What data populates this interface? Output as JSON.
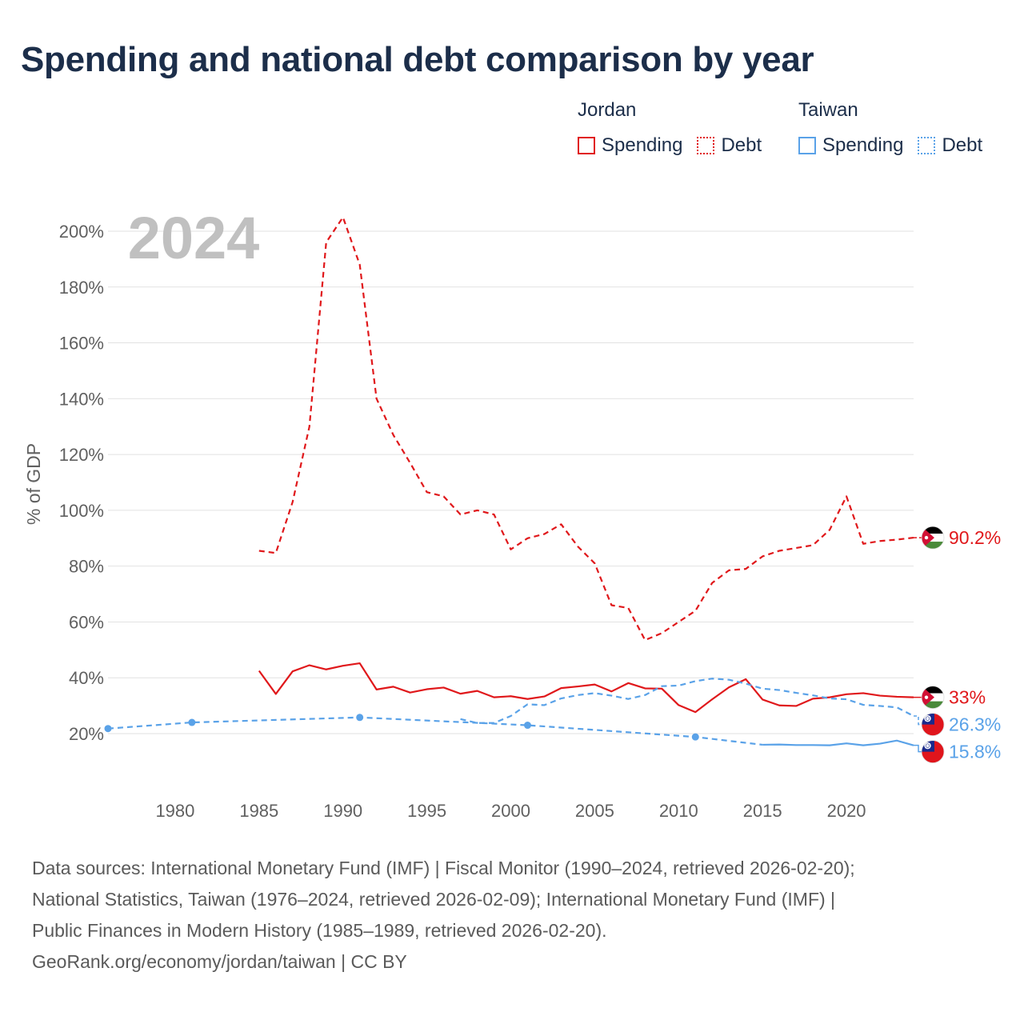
{
  "title": "Spending and national debt comparison by year",
  "legend": {
    "groups": [
      {
        "name": "Jordan",
        "color": "#e0181b",
        "items": [
          {
            "label": "Spending",
            "style": "solid"
          },
          {
            "label": "Debt",
            "style": "dotted"
          }
        ]
      },
      {
        "name": "Taiwan",
        "color": "#5aa2e8",
        "items": [
          {
            "label": "Spending",
            "style": "solid"
          },
          {
            "label": "Debt",
            "style": "dotted"
          }
        ]
      }
    ]
  },
  "year_label": "2024",
  "sources": [
    "Data sources: International Monetary Fund (IMF) | Fiscal Monitor (1990–2024, retrieved 2026-02-20);",
    "National Statistics, Taiwan (1976–2024, retrieved 2026-02-09); International Monetary Fund (IMF) |",
    "Public Finances in Modern History (1985–1989, retrieved 2026-02-20).",
    "GeoRank.org/economy/jordan/taiwan | CC BY"
  ],
  "chart_data": {
    "type": "line",
    "title": "Spending and national debt comparison by year",
    "xlabel": "",
    "ylabel": "% of GDP",
    "xlim": [
      1976,
      2024
    ],
    "ylim": [
      10,
      205
    ],
    "xticks": [
      1980,
      1985,
      1990,
      1995,
      2000,
      2005,
      2010,
      2015,
      2020
    ],
    "xtick_labels": [
      "1980",
      "1985",
      "1990",
      "1995",
      "2000",
      "2005",
      "2010",
      "2015",
      "2020"
    ],
    "yticks": [
      20,
      40,
      60,
      80,
      100,
      120,
      140,
      160,
      180,
      200
    ],
    "ytick_labels": [
      "20%",
      "40%",
      "60%",
      "80%",
      "100%",
      "120%",
      "140%",
      "160%",
      "180%",
      "200%"
    ],
    "grid": true,
    "series": [
      {
        "name": "Jordan Debt",
        "country": "Jordan",
        "color": "#e0181b",
        "style": "dashed",
        "end_label": "90.2%",
        "x": [
          1985,
          1986,
          1987,
          1988,
          1989,
          1990,
          1991,
          1992,
          1993,
          1994,
          1995,
          1996,
          1997,
          1998,
          1999,
          2000,
          2001,
          2002,
          2003,
          2004,
          2005,
          2006,
          2007,
          2008,
          2009,
          2010,
          2011,
          2012,
          2013,
          2014,
          2015,
          2016,
          2017,
          2018,
          2019,
          2020,
          2021,
          2022,
          2023,
          2024
        ],
        "y": [
          85.5,
          84.7,
          103,
          130,
          196,
          205,
          188,
          140,
          127,
          117,
          106.5,
          105,
          98.5,
          100,
          98.5,
          86,
          90,
          91.5,
          95,
          87,
          81,
          66,
          65,
          53.5,
          56,
          60,
          64,
          74,
          78.5,
          79,
          83.5,
          85.5,
          86.5,
          87.5,
          93,
          105,
          88,
          89,
          89.5,
          90.2
        ]
      },
      {
        "name": "Jordan Spending",
        "country": "Jordan",
        "color": "#e0181b",
        "style": "solid",
        "end_label": "33%",
        "x": [
          1985,
          1986,
          1987,
          1988,
          1989,
          1990,
          1991,
          1992,
          1993,
          1994,
          1995,
          1996,
          1997,
          1998,
          1999,
          2000,
          2001,
          2002,
          2003,
          2004,
          2005,
          2006,
          2007,
          2008,
          2009,
          2010,
          2011,
          2012,
          2013,
          2014,
          2015,
          2016,
          2017,
          2018,
          2019,
          2020,
          2021,
          2022,
          2023,
          2024
        ],
        "y": [
          42.5,
          34.2,
          42.3,
          44.5,
          43,
          44.3,
          45.2,
          35.8,
          36.8,
          34.7,
          35.9,
          36.5,
          34.3,
          35.3,
          33,
          33.4,
          32.4,
          33.3,
          36.3,
          36.9,
          37.6,
          35.1,
          38.1,
          36.2,
          36.1,
          30.2,
          27.7,
          32.3,
          36.6,
          39.5,
          32.2,
          30.1,
          29.9,
          32.5,
          33,
          34.1,
          34.5,
          33.6,
          33.2,
          33
        ]
      },
      {
        "name": "Taiwan Debt",
        "country": "Taiwan",
        "color": "#5aa2e8",
        "style": "dashed",
        "end_label": "26.3%",
        "x": [
          1997,
          1998,
          1999,
          2000,
          2001,
          2002,
          2003,
          2004,
          2005,
          2006,
          2007,
          2008,
          2009,
          2010,
          2011,
          2012,
          2013,
          2014,
          2015,
          2016,
          2017,
          2018,
          2019,
          2020,
          2021,
          2022,
          2023,
          2024
        ],
        "y": [
          25.2,
          23.8,
          23.8,
          26.3,
          30.5,
          30.2,
          32.6,
          33.8,
          34.5,
          33.6,
          32.4,
          33.8,
          37,
          37.2,
          38.8,
          39.7,
          39.3,
          37.9,
          36.1,
          35.6,
          34.6,
          33.7,
          32.6,
          32.3,
          30.3,
          29.9,
          29.4,
          26.3
        ]
      },
      {
        "name": "Taiwan Spending",
        "country": "Taiwan",
        "color": "#5aa2e8",
        "style": "solid-dashed-early",
        "end_label": "15.8%",
        "x": [
          1976,
          1981,
          1991,
          2001,
          2011,
          2015,
          2016,
          2017,
          2018,
          2019,
          2020,
          2021,
          2022,
          2023,
          2024
        ],
        "y": [
          21.8,
          24,
          25.8,
          23,
          18.8,
          16,
          16.1,
          15.9,
          15.9,
          15.8,
          16.5,
          15.8,
          16.4,
          17.5,
          15.8
        ],
        "sparse_until": 2011,
        "marker_years": [
          1976,
          1981,
          1991,
          2001,
          2011
        ]
      }
    ]
  }
}
